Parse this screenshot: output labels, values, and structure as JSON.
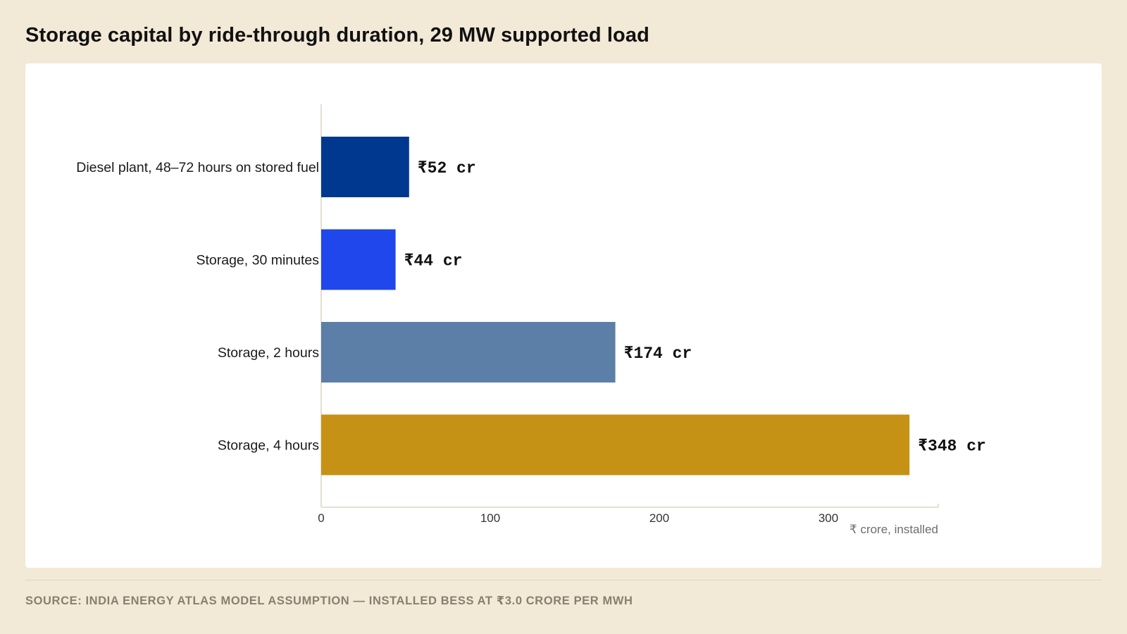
{
  "title": "Storage capital by ride-through duration, 29 MW supported load",
  "source": "SOURCE: INDIA ENERGY ATLAS MODEL ASSUMPTION — INSTALLED BESS AT ₹3.0 CRORE PER MWH",
  "chart_data": {
    "type": "bar",
    "orientation": "horizontal",
    "categories": [
      "Diesel plant, 48–72 hours on stored fuel",
      "Storage, 30 minutes",
      "Storage, 2 hours",
      "Storage, 4 hours"
    ],
    "values": [
      52,
      44,
      174,
      348
    ],
    "value_labels": [
      "₹52 cr",
      "₹44 cr",
      "₹174 cr",
      "₹348 cr"
    ],
    "colors": [
      "#00388f",
      "#1f47eb",
      "#5b7fa7",
      "#c69216"
    ],
    "xlabel": "₹ crore, installed",
    "ylabel": "",
    "xlim": [
      0,
      365
    ],
    "xticks": [
      0,
      100,
      200,
      300
    ],
    "grid": false,
    "legend": "none"
  }
}
